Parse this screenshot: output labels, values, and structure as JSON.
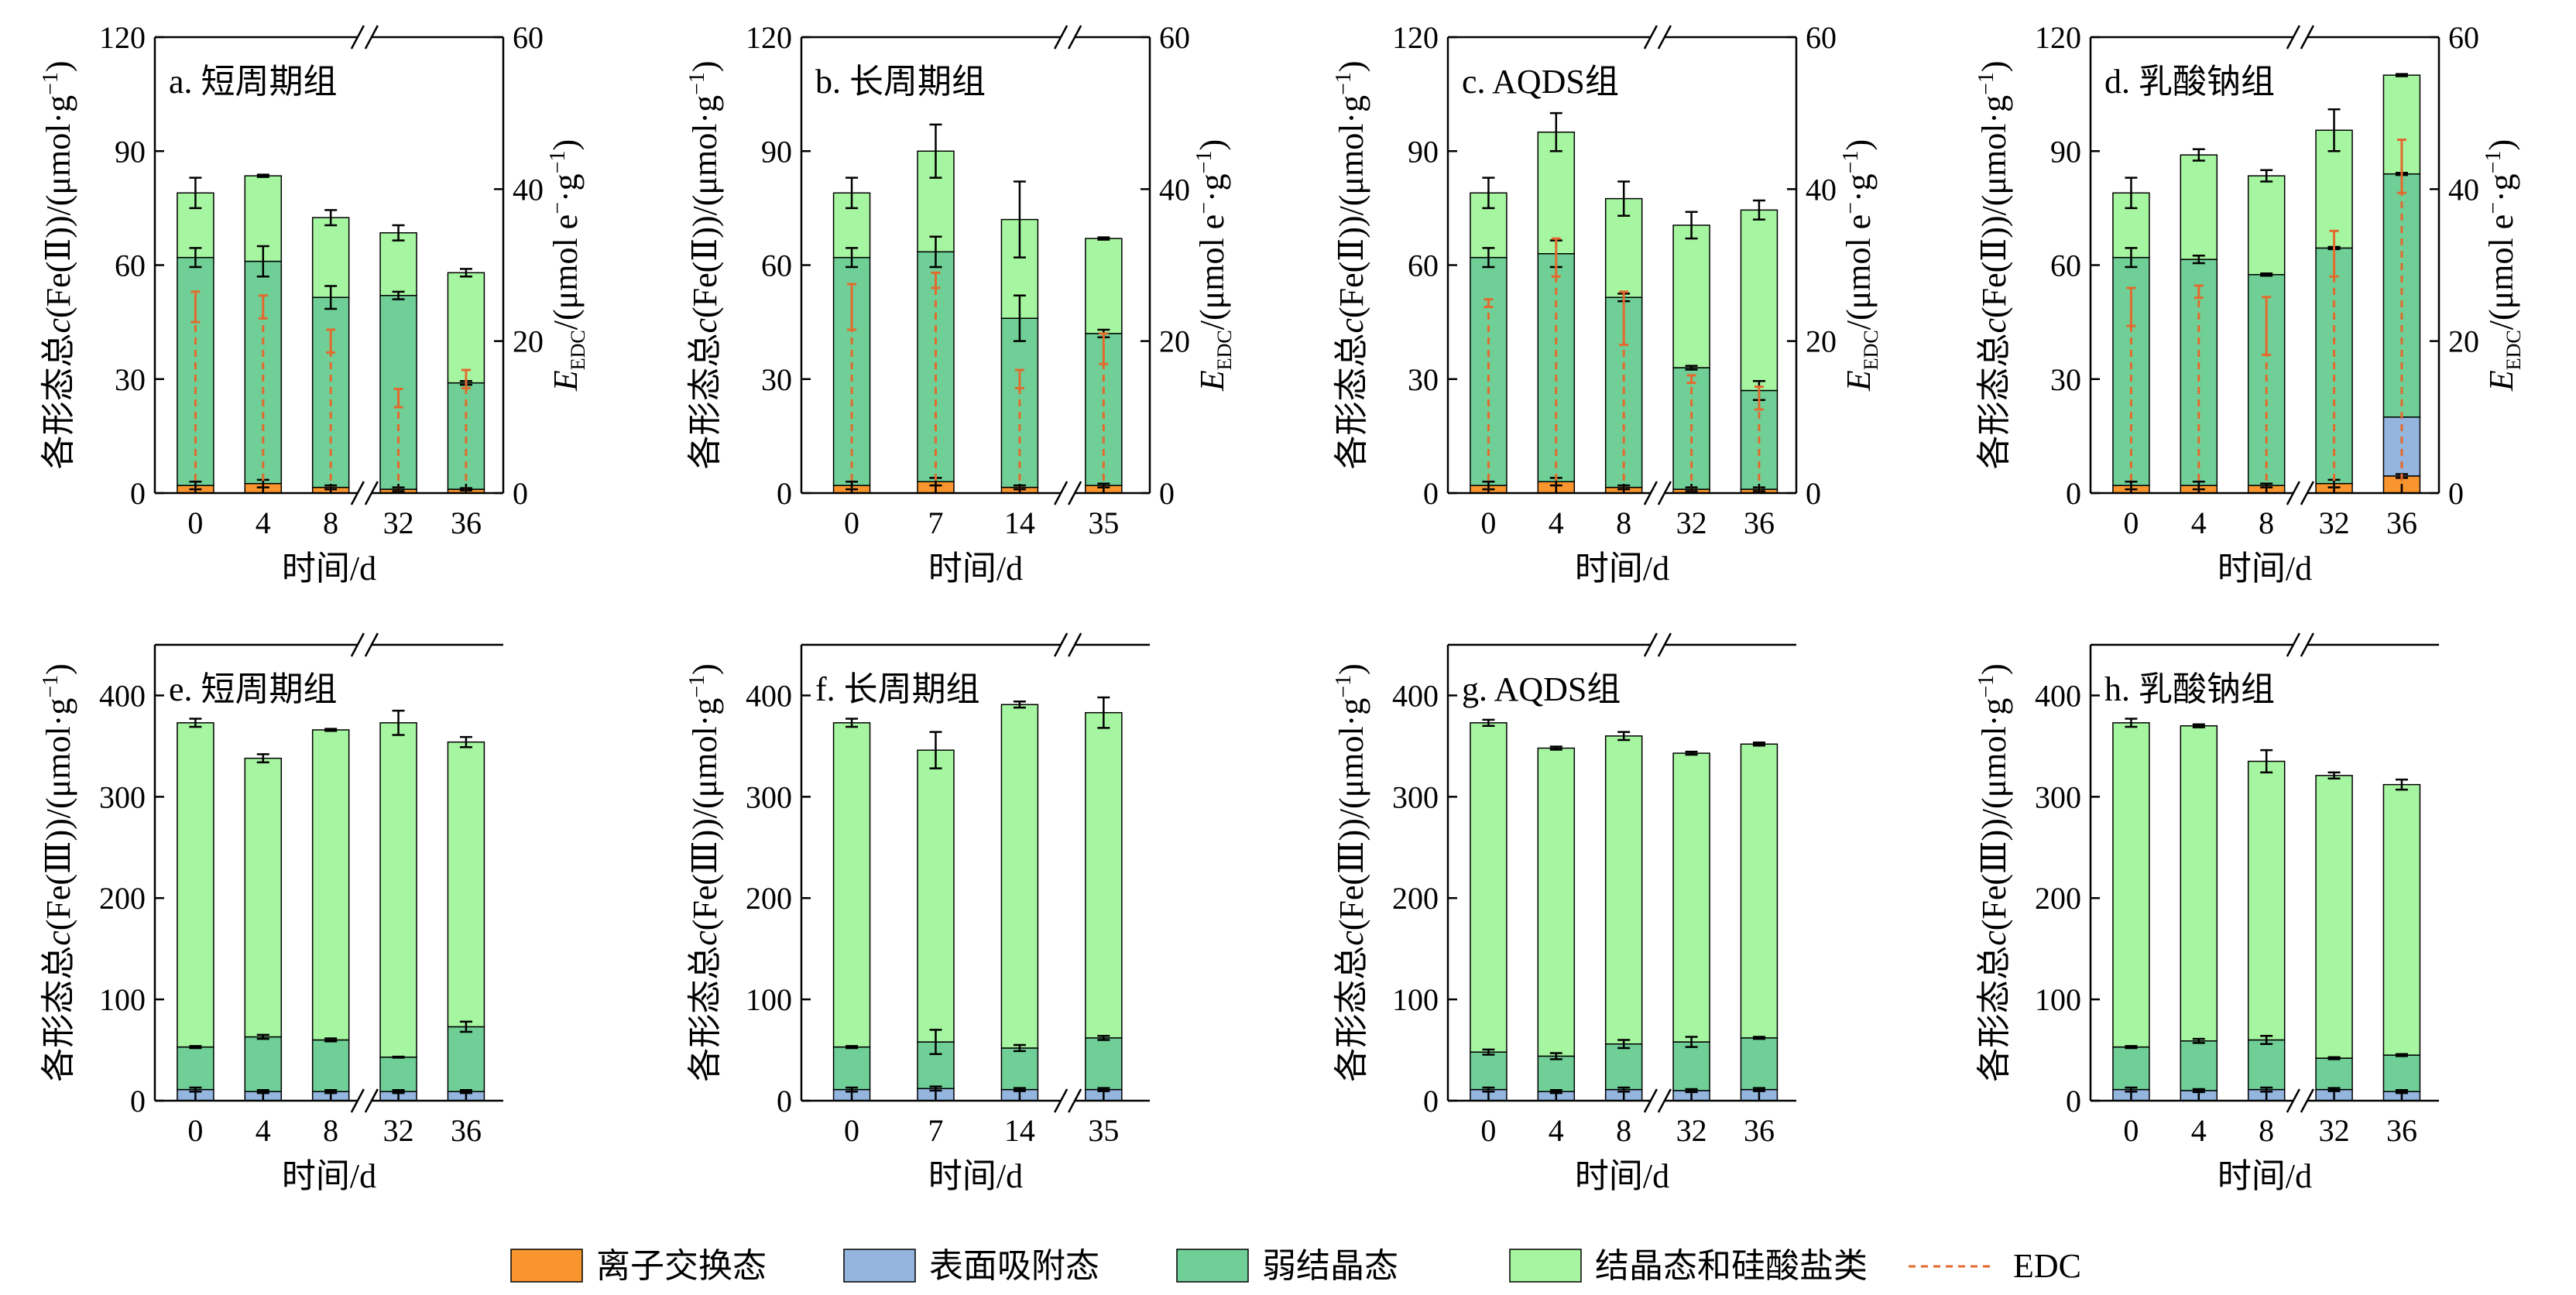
{
  "colors": {
    "ion_exchange": "#f9952e",
    "surface_adsorbed": "#93b5de",
    "weak_crystalline": "#6fcf97",
    "crystalline_silicate": "#a6f5a0",
    "edc": "#e36a2e"
  },
  "legend": {
    "items": [
      {
        "label": "离子交换态",
        "type": "box",
        "color_key": "ion_exchange"
      },
      {
        "label": "表面吸附态",
        "type": "box",
        "color_key": "surface_adsorbed"
      },
      {
        "label": "弱结晶态",
        "type": "box",
        "color_key": "weak_crystalline"
      },
      {
        "label": "结晶态和硅酸盐类",
        "type": "box",
        "color_key": "crystalline_silicate"
      },
      {
        "label": "EDC",
        "type": "dash",
        "color_key": "edc"
      }
    ]
  },
  "xlabel": "时间/d",
  "ylabel_fe2_prefix": "各形态总",
  "ylabel_fe2_c": "c",
  "ylabel_fe2_suffix": "(Fe(Ⅱ))/(μmol·g",
  "ylabel_fe3_prefix": "各形态总",
  "ylabel_fe3_c": "c",
  "ylabel_fe3_suffix": "(Fe(Ⅲ))/(μmol·g",
  "ylabel_edc_e": "E",
  "ylabel_edc_sub": "EDC",
  "ylabel_edc_suffix": "/(μmol e",
  "ylabel_edc_g": "·g",
  "sup_minus": "−",
  "sup_minus_one": "−1",
  "close_paren": ")",
  "chart_data": [
    {
      "id": "a",
      "type": "bar",
      "stacked": true,
      "title": "a. 短周期组",
      "categories": [
        "0",
        "4",
        "8",
        "32",
        "36"
      ],
      "axis_break_after_index": 2,
      "ylim": [
        0,
        120
      ],
      "yticks": [
        0,
        30,
        60,
        90,
        120
      ],
      "y2lim": [
        0,
        60
      ],
      "y2ticks": [
        0,
        20,
        40,
        60
      ],
      "series": [
        {
          "name": "离子交换态",
          "values": [
            2,
            2.5,
            1.5,
            1,
            1
          ]
        },
        {
          "name": "表面吸附态",
          "values": [
            0,
            0,
            0,
            0,
            0
          ]
        },
        {
          "name": "弱结晶态",
          "values": [
            60,
            58.5,
            50,
            51,
            28
          ]
        },
        {
          "name": "结晶态和硅酸盐类",
          "values": [
            17,
            22.5,
            21,
            16.5,
            29
          ]
        }
      ],
      "errors": {
        "ion": [
          1,
          1,
          0.5,
          0.5,
          0.3
        ],
        "weak": [
          2.5,
          4,
          3,
          1,
          0.5
        ],
        "total": [
          4,
          0.3,
          2,
          2,
          1
        ]
      },
      "edc": {
        "values": [
          24.5,
          24.5,
          20,
          12.5,
          15
        ],
        "errors": [
          2,
          1.5,
          1.5,
          1.2,
          1.2
        ]
      }
    },
    {
      "id": "b",
      "type": "bar",
      "stacked": true,
      "title": "b. 长周期组",
      "categories": [
        "0",
        "7",
        "14",
        "35"
      ],
      "axis_break_after_index": 2,
      "ylim": [
        0,
        120
      ],
      "yticks": [
        0,
        30,
        60,
        90,
        120
      ],
      "y2lim": [
        0,
        60
      ],
      "y2ticks": [
        0,
        20,
        40,
        60
      ],
      "series": [
        {
          "name": "离子交换态",
          "values": [
            2,
            3,
            1.5,
            2
          ]
        },
        {
          "name": "表面吸附态",
          "values": [
            0,
            0,
            0,
            0
          ]
        },
        {
          "name": "弱结晶态",
          "values": [
            60,
            60.5,
            44.5,
            40
          ]
        },
        {
          "name": "结晶态和硅酸盐类",
          "values": [
            17,
            26.5,
            26,
            25
          ]
        }
      ],
      "errors": {
        "ion": [
          1,
          1,
          0.5,
          0.5
        ],
        "weak": [
          2.5,
          4,
          6,
          1
        ],
        "total": [
          4,
          7,
          10,
          0.3
        ]
      },
      "edc": {
        "values": [
          24.5,
          28,
          15,
          19
        ],
        "errors": [
          3,
          1,
          1.2,
          2
        ]
      }
    },
    {
      "id": "c",
      "type": "bar",
      "stacked": true,
      "title": "c. AQDS组",
      "categories": [
        "0",
        "4",
        "8",
        "32",
        "36"
      ],
      "axis_break_after_index": 2,
      "ylim": [
        0,
        120
      ],
      "yticks": [
        0,
        30,
        60,
        90,
        120
      ],
      "y2lim": [
        0,
        60
      ],
      "y2ticks": [
        0,
        20,
        40,
        60
      ],
      "series": [
        {
          "name": "离子交换态",
          "values": [
            2,
            3,
            1.5,
            1,
            1
          ]
        },
        {
          "name": "表面吸附态",
          "values": [
            0,
            0,
            0,
            0,
            0
          ]
        },
        {
          "name": "弱结晶态",
          "values": [
            60,
            60,
            50,
            32,
            26
          ]
        },
        {
          "name": "结晶态和硅酸盐类",
          "values": [
            17,
            32,
            26,
            37.5,
            47.5
          ]
        }
      ],
      "errors": {
        "ion": [
          1,
          1,
          0.5,
          0.5,
          0.5
        ],
        "weak": [
          2.5,
          3.5,
          1,
          0.5,
          2.5
        ],
        "total": [
          4,
          5,
          4.5,
          3.5,
          2.5
        ]
      },
      "edc": {
        "values": [
          25,
          31,
          23,
          15,
          12.5
        ],
        "errors": [
          0.5,
          2.5,
          3.5,
          0.5,
          1.5
        ]
      }
    },
    {
      "id": "d",
      "type": "bar",
      "stacked": true,
      "title": "d. 乳酸钠组",
      "categories": [
        "0",
        "4",
        "8",
        "32",
        "36"
      ],
      "axis_break_after_index": 2,
      "ylim": [
        0,
        120
      ],
      "yticks": [
        0,
        30,
        60,
        90,
        120
      ],
      "y2lim": [
        0,
        60
      ],
      "y2ticks": [
        0,
        20,
        40,
        60
      ],
      "series": [
        {
          "name": "离子交换态",
          "values": [
            2,
            2,
            2,
            2.5,
            4.5
          ]
        },
        {
          "name": "表面吸附态",
          "values": [
            0,
            0,
            0,
            0,
            15.5
          ]
        },
        {
          "name": "弱结晶态",
          "values": [
            60,
            59.5,
            55.5,
            62,
            64
          ]
        },
        {
          "name": "结晶态和硅酸盐类",
          "values": [
            17,
            27.5,
            26,
            31,
            26
          ]
        }
      ],
      "errors": {
        "ion": [
          1,
          1,
          0.5,
          1,
          0.5
        ],
        "weak": [
          2.5,
          1,
          0.3,
          0.3,
          0.3
        ],
        "total": [
          4,
          1.5,
          1.5,
          5.5,
          0.3
        ]
      },
      "edc": {
        "values": [
          24.5,
          26.5,
          22,
          31.5,
          43
        ],
        "errors": [
          2.5,
          0.8,
          3.8,
          3,
          3.5
        ]
      }
    },
    {
      "id": "e",
      "type": "bar",
      "stacked": true,
      "title": "e. 短周期组",
      "categories": [
        "0",
        "4",
        "8",
        "32",
        "36"
      ],
      "axis_break_after_index": 2,
      "ylim": [
        0,
        450
      ],
      "yticks": [
        0,
        100,
        200,
        300,
        400
      ],
      "series": [
        {
          "name": "离子交换态",
          "values": [
            0,
            0,
            0,
            0,
            0
          ]
        },
        {
          "name": "表面吸附态",
          "values": [
            11,
            9,
            9,
            9,
            9
          ]
        },
        {
          "name": "弱结晶态",
          "values": [
            42,
            54,
            51,
            34,
            64
          ]
        },
        {
          "name": "结晶态和硅酸盐类",
          "values": [
            320,
            275,
            306,
            330,
            281
          ]
        }
      ],
      "errors": {
        "surf": [
          2,
          1.5,
          1.5,
          1.5,
          1.5
        ],
        "weak": [
          1,
          2,
          1.5,
          0.5,
          5
        ],
        "total": [
          4,
          4,
          1,
          12,
          5
        ]
      }
    },
    {
      "id": "f",
      "type": "bar",
      "stacked": true,
      "title": "f. 长周期组",
      "categories": [
        "0",
        "7",
        "14",
        "35"
      ],
      "axis_break_after_index": 2,
      "ylim": [
        0,
        450
      ],
      "yticks": [
        0,
        100,
        200,
        300,
        400
      ],
      "series": [
        {
          "name": "离子交换态",
          "values": [
            0,
            0,
            0,
            0
          ]
        },
        {
          "name": "表面吸附态",
          "values": [
            11,
            12,
            11,
            11
          ]
        },
        {
          "name": "弱结晶态",
          "values": [
            42,
            46,
            41,
            51
          ]
        },
        {
          "name": "结晶态和硅酸盐类",
          "values": [
            320,
            288,
            339,
            321
          ]
        }
      ],
      "errors": {
        "surf": [
          2,
          2,
          1.5,
          1.5
        ],
        "weak": [
          1,
          12,
          3,
          2
        ],
        "total": [
          4,
          18,
          3,
          15
        ]
      }
    },
    {
      "id": "g",
      "type": "bar",
      "stacked": true,
      "title": "g. AQDS组",
      "categories": [
        "0",
        "4",
        "8",
        "32",
        "36"
      ],
      "axis_break_after_index": 2,
      "ylim": [
        0,
        450
      ],
      "yticks": [
        0,
        100,
        200,
        300,
        400
      ],
      "series": [
        {
          "name": "离子交换态",
          "values": [
            0,
            0,
            0,
            0,
            0
          ]
        },
        {
          "name": "表面吸附态",
          "values": [
            11,
            9,
            11,
            10,
            11
          ]
        },
        {
          "name": "弱结晶态",
          "values": [
            37,
            35,
            45,
            48,
            51
          ]
        },
        {
          "name": "结晶态和硅酸盐类",
          "values": [
            325,
            304,
            304,
            285,
            290
          ]
        }
      ],
      "errors": {
        "surf": [
          2,
          1.5,
          2,
          1.5,
          1.5
        ],
        "weak": [
          2.5,
          3,
          4,
          5,
          1
        ],
        "total": [
          3,
          1.5,
          4,
          1.5,
          1.5
        ]
      }
    },
    {
      "id": "h",
      "type": "bar",
      "stacked": true,
      "title": "h. 乳酸钠组",
      "categories": [
        "0",
        "4",
        "8",
        "32",
        "36"
      ],
      "axis_break_after_index": 2,
      "ylim": [
        0,
        450
      ],
      "yticks": [
        0,
        100,
        200,
        300,
        400
      ],
      "series": [
        {
          "name": "离子交换态",
          "values": [
            0,
            0,
            0,
            0,
            0
          ]
        },
        {
          "name": "表面吸附态",
          "values": [
            11,
            10,
            11,
            11,
            9
          ]
        },
        {
          "name": "弱结晶态",
          "values": [
            42,
            49,
            49,
            31,
            36
          ]
        },
        {
          "name": "结晶态和硅酸盐类",
          "values": [
            320,
            311,
            275,
            279,
            267
          ]
        }
      ],
      "errors": {
        "surf": [
          2,
          1.5,
          2,
          1.5,
          1.5
        ],
        "weak": [
          1,
          2,
          4,
          1,
          1
        ],
        "total": [
          4,
          1.5,
          11,
          3,
          5
        ]
      }
    }
  ]
}
